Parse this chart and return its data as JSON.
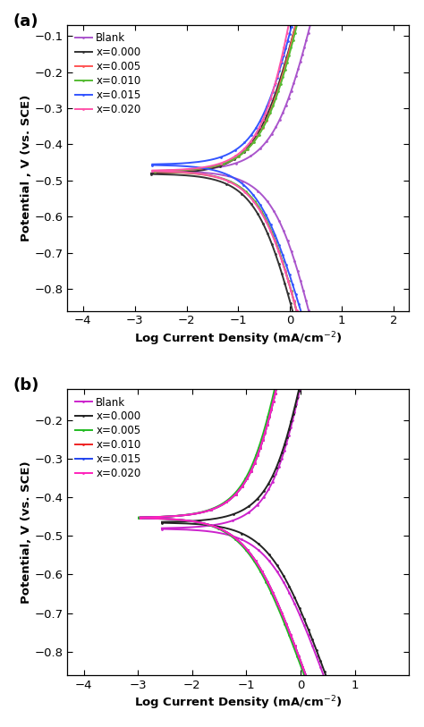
{
  "panel_a": {
    "label": "(a)",
    "legend_labels": [
      "Blank",
      "x=0.000",
      "x=0.005",
      "x=0.010",
      "x=0.015",
      "x=0.020"
    ],
    "colors": [
      "#AA55CC",
      "#333333",
      "#FF5555",
      "#55BB33",
      "#3355FF",
      "#FF55AA"
    ],
    "xlabel": "Log Current Density (mA/cm$^{-2}$)",
    "ylabel": "Potential , V (vs. SCE)",
    "xlim": [
      -4.3,
      2.3
    ],
    "ylim": [
      -0.86,
      -0.07
    ],
    "yticks": [
      -0.8,
      -0.7,
      -0.6,
      -0.5,
      -0.4,
      -0.3,
      -0.2,
      -0.1
    ],
    "xticks": [
      -4,
      -3,
      -2,
      -1,
      0,
      1,
      2
    ],
    "series": [
      {
        "E_corr": -0.473,
        "log_i0": -0.25,
        "ba": 0.115,
        "bc": 0.115,
        "log_i_lim_cat": -4.05,
        "log_i_max_an": 2.05,
        "label": "Blank",
        "color": "#AA55CC"
      },
      {
        "E_corr": -0.481,
        "log_i0": -0.58,
        "ba": 0.11,
        "bc": 0.11,
        "log_i_lim_cat": -3.25,
        "log_i_max_an": 2.05,
        "label": "x=0.000",
        "color": "#333333"
      },
      {
        "E_corr": -0.475,
        "log_i0": -0.48,
        "ba": 0.125,
        "bc": 0.115,
        "log_i_lim_cat": -3.55,
        "log_i_max_an": 1.9,
        "label": "x=0.005",
        "color": "#FF5555"
      },
      {
        "E_corr": -0.474,
        "log_i0": -0.48,
        "ba": 0.12,
        "bc": 0.115,
        "log_i_lim_cat": -3.55,
        "log_i_max_an": 1.98,
        "label": "x=0.010",
        "color": "#55BB33"
      },
      {
        "E_corr": -0.456,
        "log_i0": -0.58,
        "ba": 0.115,
        "bc": 0.095,
        "log_i_lim_cat": -2.85,
        "log_i_max_an": 1.72,
        "label": "x=0.015",
        "color": "#3355FF"
      },
      {
        "E_corr": -0.473,
        "log_i0": -0.47,
        "ba": 0.16,
        "bc": 0.115,
        "log_i_lim_cat": -3.55,
        "log_i_max_an": 1.72,
        "label": "x=0.020",
        "color": "#FF55AA"
      }
    ]
  },
  "panel_b": {
    "label": "(b)",
    "legend_labels": [
      "Blank",
      "x=0.000",
      "x=0.005",
      "x=0.010",
      "x=0.015",
      "x=0.020"
    ],
    "colors": [
      "#CC22CC",
      "#222222",
      "#22BB22",
      "#EE2222",
      "#2244EE",
      "#FF22BB"
    ],
    "xlabel": "Log Current Density (mA/cm$^{-2}$)",
    "ylabel": "Potential, V (vs. SCE)",
    "xlim": [
      -4.3,
      2.0
    ],
    "ylim": [
      -0.86,
      -0.12
    ],
    "yticks": [
      -0.8,
      -0.7,
      -0.6,
      -0.5,
      -0.4,
      -0.3,
      -0.2
    ],
    "xticks": [
      -4,
      -3,
      -2,
      -1,
      0,
      1
    ],
    "series": [
      {
        "E_corr": -0.481,
        "log_i0": -0.52,
        "ba": 0.13,
        "bc": 0.075,
        "log_i_lim_cat": -4.05,
        "log_i_max_an": 1.6,
        "label": "Blank",
        "color": "#CC22CC"
      },
      {
        "E_corr": -0.465,
        "log_i0": -0.52,
        "ba": 0.128,
        "bc": 0.075,
        "log_i_lim_cat": -3.72,
        "log_i_max_an": 1.52,
        "label": "x=0.000",
        "color": "#222222"
      },
      {
        "E_corr": -0.453,
        "log_i0": -0.95,
        "ba": 0.128,
        "bc": 0.075,
        "log_i_lim_cat": -3.52,
        "log_i_max_an": 1.52,
        "label": "x=0.005",
        "color": "#22BB22"
      },
      {
        "E_corr": -0.453,
        "log_i0": -0.92,
        "ba": 0.128,
        "bc": 0.075,
        "log_i_lim_cat": -3.52,
        "log_i_max_an": 1.52,
        "label": "x=0.010",
        "color": "#EE2222"
      },
      {
        "E_corr": -0.453,
        "log_i0": -0.92,
        "ba": 0.128,
        "bc": 0.075,
        "log_i_lim_cat": -3.52,
        "log_i_max_an": 1.52,
        "label": "x=0.015",
        "color": "#2244EE"
      },
      {
        "E_corr": -0.453,
        "log_i0": -0.92,
        "ba": 0.128,
        "bc": 0.075,
        "log_i_lim_cat": -3.52,
        "log_i_max_an": 1.52,
        "label": "x=0.020",
        "color": "#FF22BB"
      }
    ]
  },
  "figure_bg": "#ffffff"
}
